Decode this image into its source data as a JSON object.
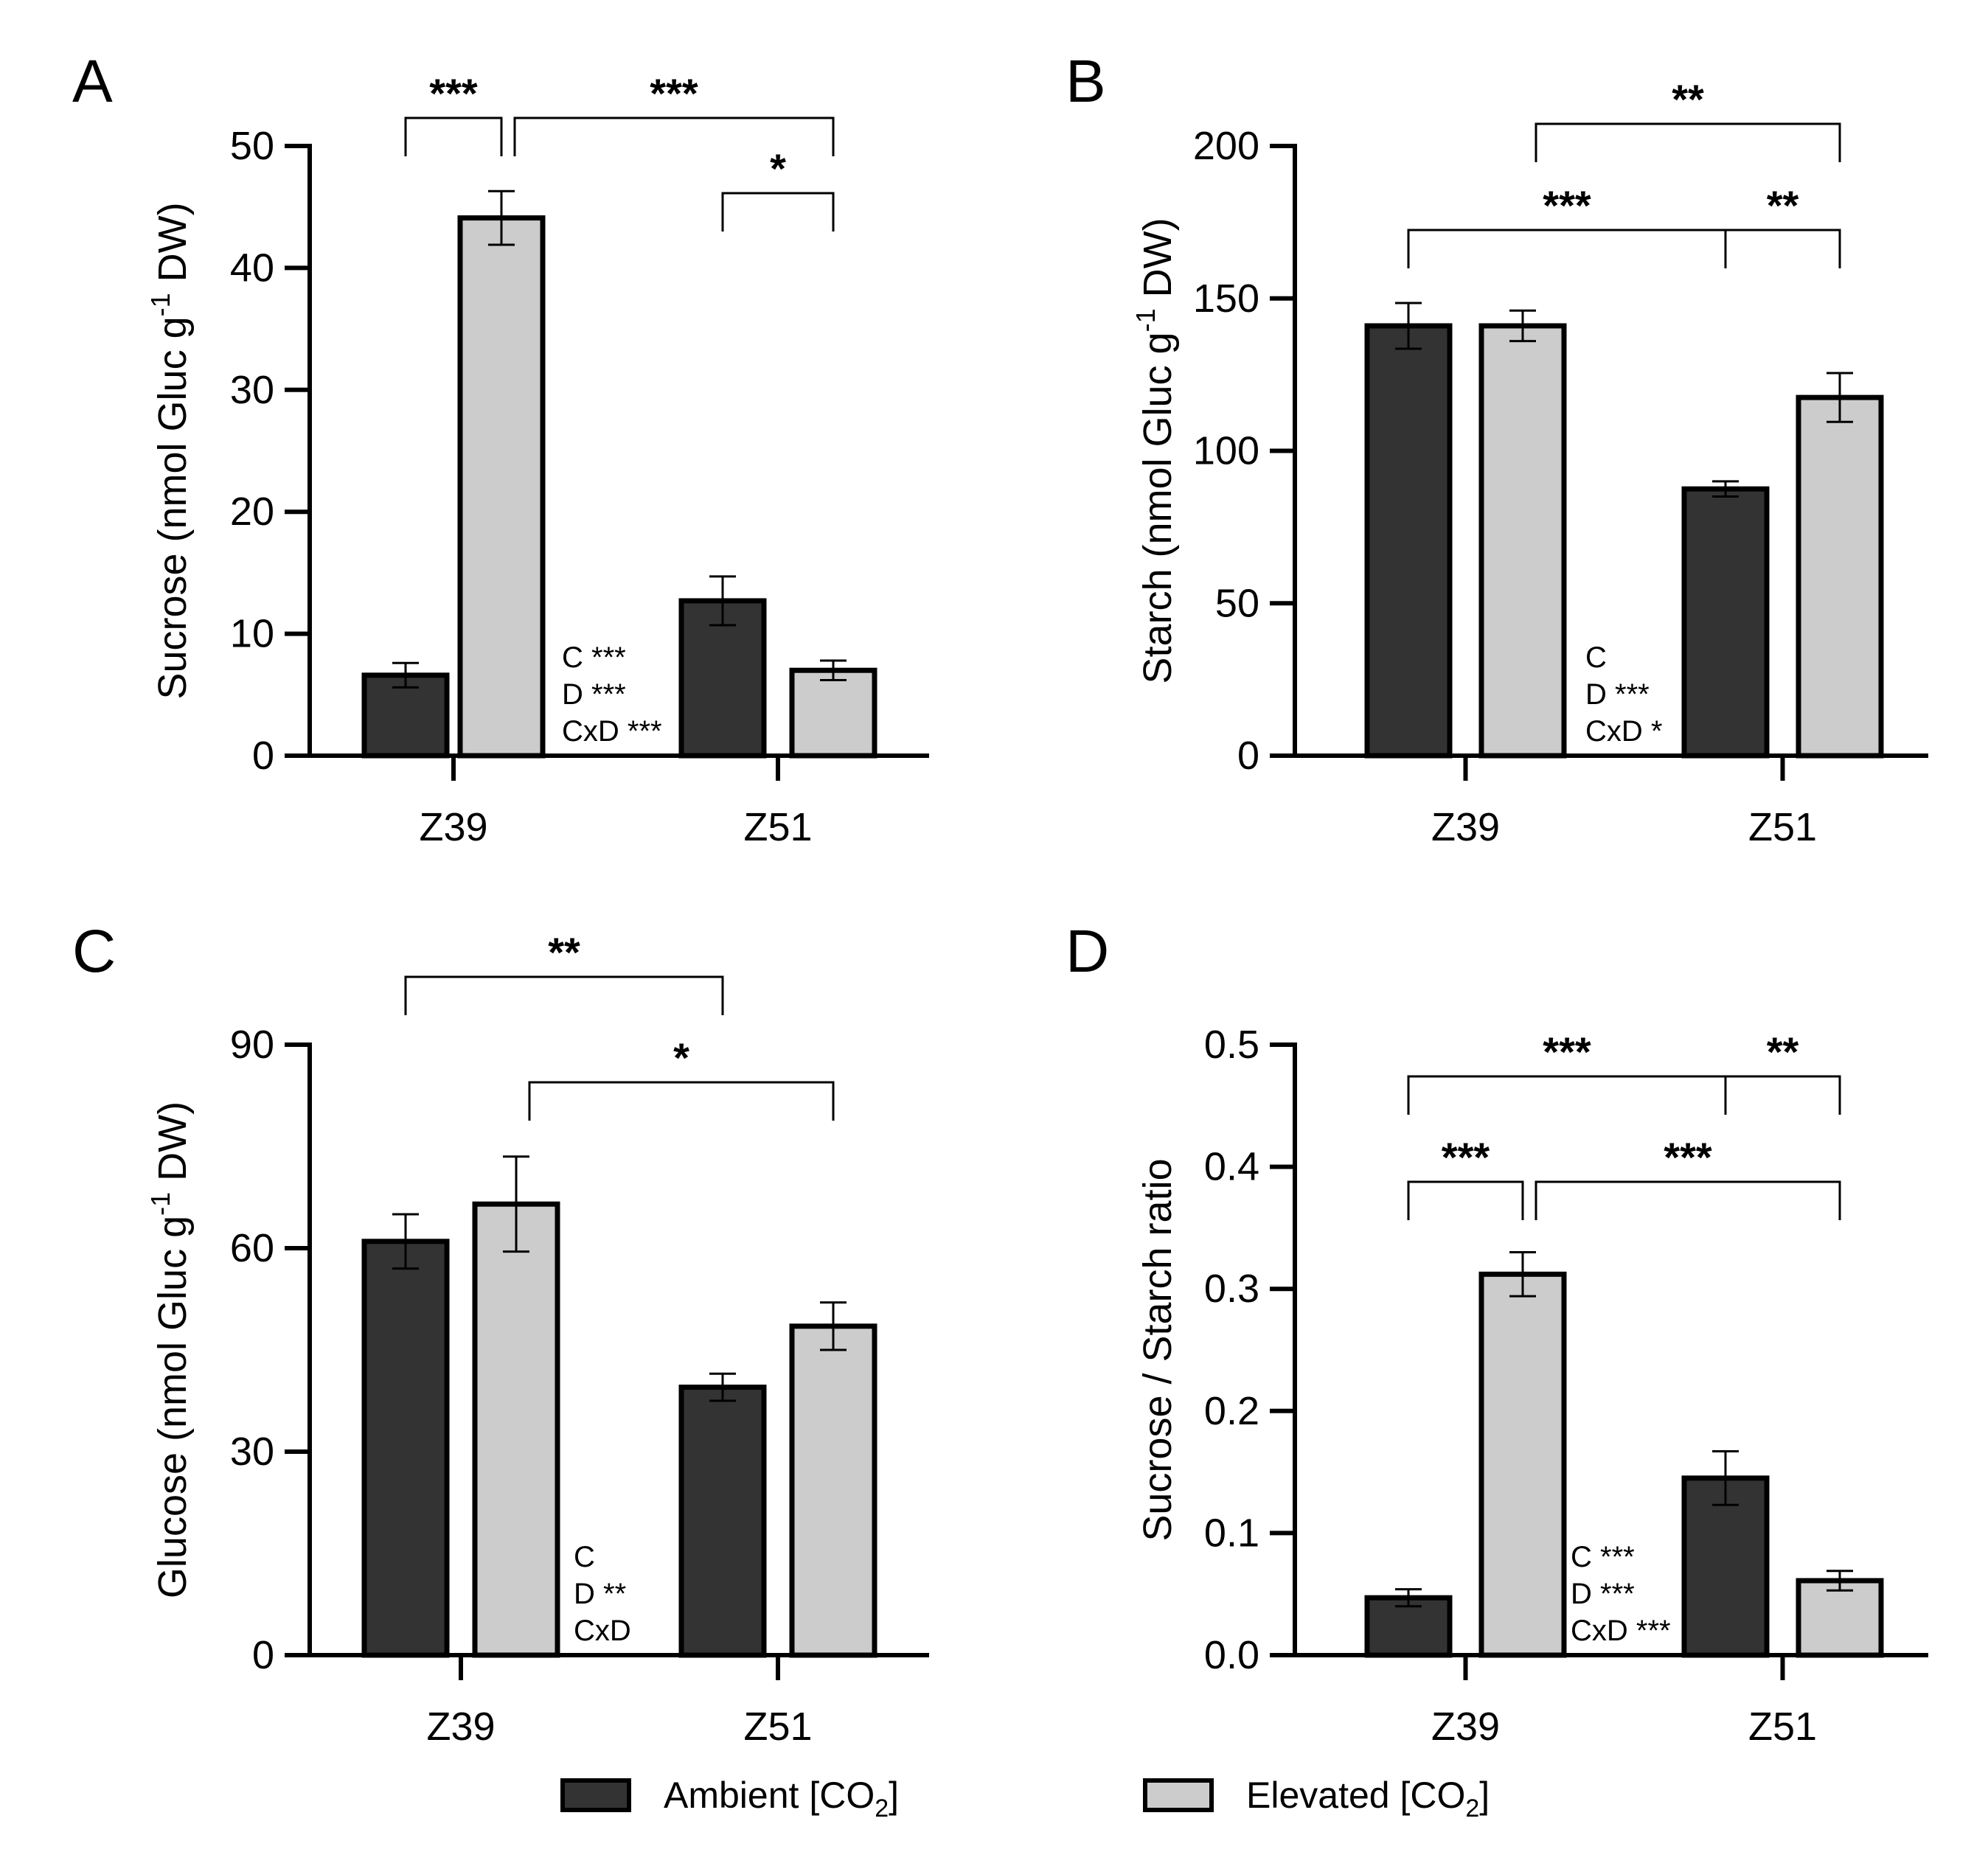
{
  "colors": {
    "ambient": "#333333",
    "elevated": "#cccccc",
    "ink": "#000000"
  },
  "legend": {
    "ambient": {
      "base": "Ambient [CO",
      "sub": "2",
      "close": "]"
    },
    "elevated": {
      "base": "Elevated [CO",
      "sub": "2",
      "close": "]"
    }
  },
  "chart_data": [
    {
      "panel": "A",
      "type": "bar",
      "title": "",
      "xlabel": "",
      "ylabel": "Sucrose (nmol Gluc g-1 DW)",
      "ylabel_parts": {
        "base": "Sucrose (nmol Gluc g",
        "sup": "-1",
        "tail": " DW)"
      },
      "categories": [
        "Z39",
        "Z51"
      ],
      "ylim": [
        0,
        50
      ],
      "yticks": [
        0,
        10,
        20,
        30,
        40,
        50
      ],
      "decimals": 0,
      "series": [
        {
          "name": "Ambient [CO2]",
          "values": [
            6.6,
            12.7
          ],
          "errors": [
            1.0,
            2.0
          ]
        },
        {
          "name": "Elevated [CO2]",
          "values": [
            44.1,
            7.0
          ],
          "errors": [
            2.2,
            0.8
          ]
        }
      ],
      "stats": [
        "C ***",
        "D ***",
        "CxD ***"
      ],
      "brackets": [
        {
          "from": 0,
          "to": 1,
          "level": 0,
          "label": "***"
        },
        {
          "from": 1,
          "to": 3,
          "level": 0,
          "label": "***"
        },
        {
          "from": 2,
          "to": 3,
          "level": 1,
          "label": "*"
        }
      ]
    },
    {
      "panel": "B",
      "type": "bar",
      "title": "",
      "xlabel": "",
      "ylabel": "Starch (nmol Gluc g-1 DW)",
      "ylabel_parts": {
        "base": "Starch (nmol Gluc g",
        "sup": "-1",
        "tail": " DW)"
      },
      "categories": [
        "Z39",
        "Z51"
      ],
      "ylim": [
        0,
        200
      ],
      "yticks": [
        0,
        50,
        100,
        150,
        200
      ],
      "decimals": 0,
      "series": [
        {
          "name": "Ambient [CO2]",
          "values": [
            141,
            87.5
          ],
          "errors": [
            7.5,
            2.5
          ]
        },
        {
          "name": "Elevated [CO2]",
          "values": [
            141,
            117.5
          ],
          "errors": [
            5,
            8
          ]
        }
      ],
      "stats": [
        "C",
        "D ***",
        "CxD *"
      ],
      "brackets": [
        {
          "from": 1,
          "to": 3,
          "level": 0,
          "label": "**"
        },
        {
          "from": 0,
          "to": 2,
          "level": 1,
          "label": "***"
        },
        {
          "from": 2,
          "to": 3,
          "level": 1,
          "label": "**"
        }
      ]
    },
    {
      "panel": "C",
      "type": "bar",
      "title": "",
      "xlabel": "",
      "ylabel": "Glucose (nmol Gluc g-1 DW)",
      "ylabel_parts": {
        "base": "Glucose (nmol Gluc g",
        "sup": "-1",
        "tail": " DW)"
      },
      "categories": [
        "Z39",
        "Z51"
      ],
      "ylim": [
        0,
        90
      ],
      "yticks": [
        0,
        30,
        60,
        90
      ],
      "decimals": 0,
      "series": [
        {
          "name": "Ambient [CO2]",
          "values": [
            61,
            39.5
          ],
          "errors": [
            4,
            2
          ]
        },
        {
          "name": "Elevated [CO2]",
          "values": [
            66.5,
            48.5
          ],
          "errors": [
            7,
            3.5
          ]
        }
      ],
      "stats": [
        "C",
        "D **",
        "CxD"
      ],
      "brackets": [
        {
          "from": 0,
          "to": 2,
          "level": 0,
          "label": "**"
        },
        {
          "from": 1,
          "to": 3,
          "level": 1,
          "label": "*"
        }
      ]
    },
    {
      "panel": "D",
      "type": "bar",
      "title": "",
      "xlabel": "",
      "ylabel": "Sucrose / Starch ratio",
      "ylabel_parts": {
        "base": "Sucrose / Starch ratio",
        "sup": "",
        "tail": ""
      },
      "categories": [
        "Z39",
        "Z51"
      ],
      "ylim": [
        0,
        0.5
      ],
      "yticks": [
        0,
        0.1,
        0.2,
        0.3,
        0.4,
        0.5
      ],
      "decimals": 1,
      "series": [
        {
          "name": "Ambient [CO2]",
          "values": [
            0.047,
            0.145
          ],
          "errors": [
            0.007,
            0.022
          ]
        },
        {
          "name": "Elevated [CO2]",
          "values": [
            0.312,
            0.061
          ],
          "errors": [
            0.018,
            0.008
          ]
        }
      ],
      "stats": [
        "C ***",
        "D ***",
        "CxD ***"
      ],
      "brackets": [
        {
          "from": 0,
          "to": 2,
          "level": 0,
          "label": "***"
        },
        {
          "from": 2,
          "to": 3,
          "level": 0,
          "label": "**"
        },
        {
          "from": 0,
          "to": 1,
          "level": 1,
          "label": "***"
        },
        {
          "from": 1,
          "to": 3,
          "level": 1,
          "label": "***"
        }
      ]
    }
  ]
}
